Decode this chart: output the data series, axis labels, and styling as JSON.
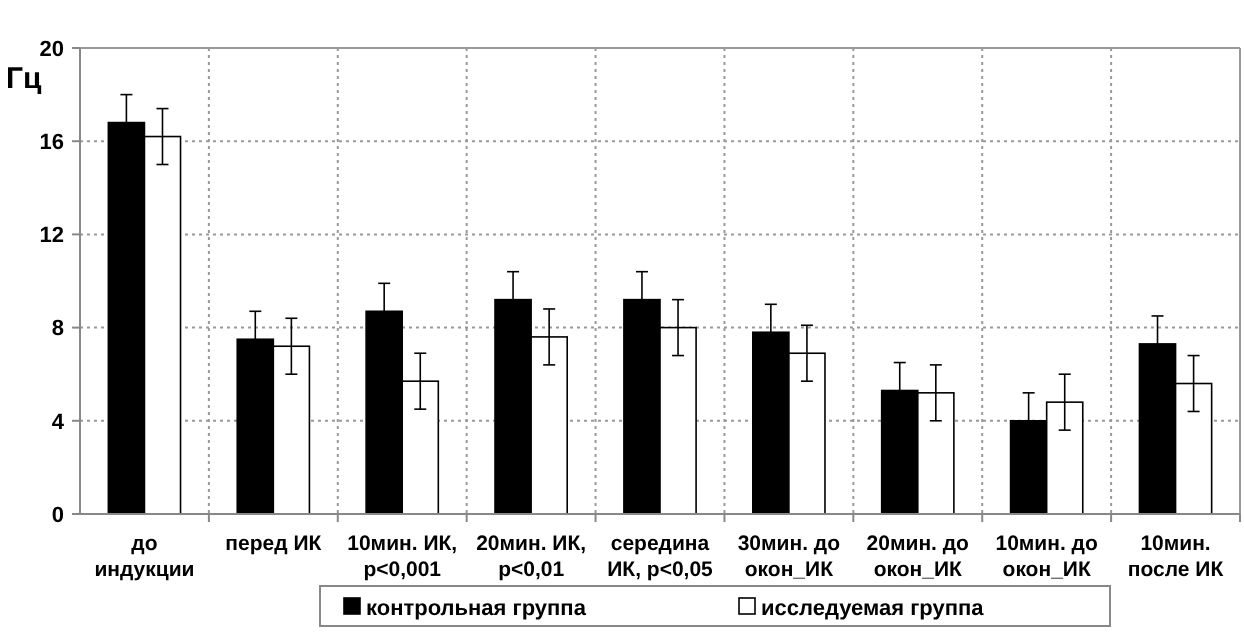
{
  "chart_data": {
    "type": "bar",
    "ylabel": "Гц",
    "categories": [
      "до индукции",
      "перед ИК",
      "10мин. ИК, p<0,001",
      "20мин. ИК, p<0,01",
      "середина ИК, p<0,05",
      "30мин. до окон_ИК",
      "20мин. до окон_ИК",
      "10мин. до окон_ИК",
      "10мин. после ИК"
    ],
    "series": [
      {
        "name": "контрольная группа",
        "color": "#000000",
        "values": [
          16.8,
          7.5,
          8.7,
          9.2,
          9.2,
          7.8,
          5.3,
          4.0,
          7.3
        ],
        "errors": [
          1.2,
          1.2,
          1.2,
          1.2,
          1.2,
          1.2,
          1.2,
          1.2,
          1.2
        ]
      },
      {
        "name": "исследуемая группа",
        "color": "#ffffff",
        "values": [
          16.2,
          7.2,
          5.7,
          7.6,
          8.0,
          6.9,
          5.2,
          4.8,
          5.6
        ],
        "errors": [
          1.2,
          1.2,
          1.2,
          1.2,
          1.2,
          1.2,
          1.2,
          1.2,
          1.2
        ]
      }
    ],
    "ylim": [
      0,
      20
    ],
    "yticks": [
      0,
      4,
      8,
      12,
      16,
      20
    ],
    "grid": true,
    "legend": "bottom"
  }
}
